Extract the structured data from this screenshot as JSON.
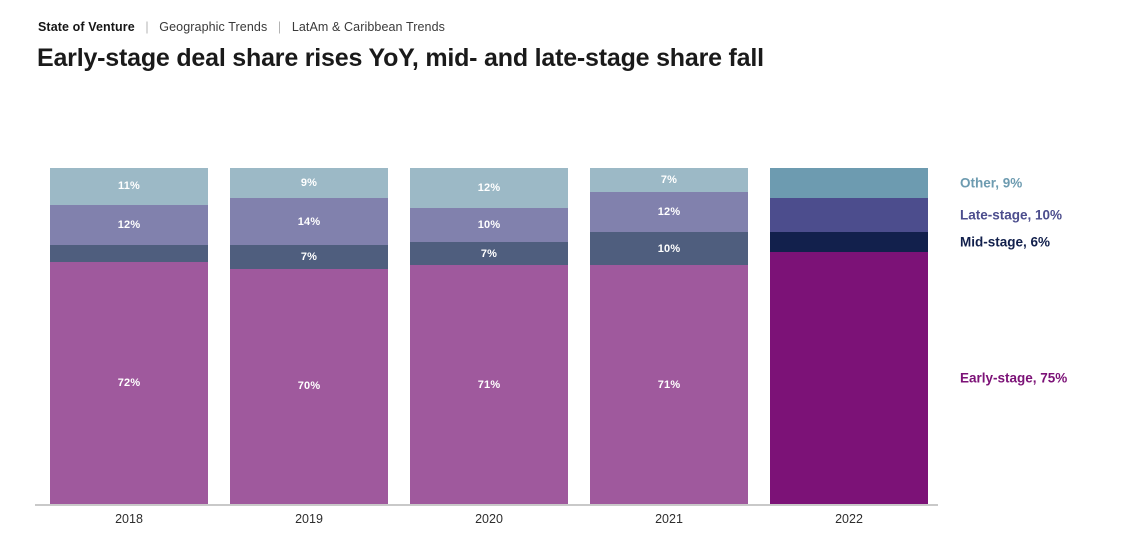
{
  "breadcrumb": {
    "separator": "|",
    "items": [
      "State of Venture",
      "Geographic Trends",
      "LatAm & Caribbean Trends"
    ]
  },
  "title": "Early-stage deal share rises YoY, mid- and late-stage share fall",
  "chart_data": {
    "type": "bar",
    "subtype": "stacked-percentage-column",
    "title": "Early-stage deal share rises YoY, mid- and late-stage share fall",
    "categories": [
      "2018",
      "2019",
      "2020",
      "2021",
      "2022"
    ],
    "stack_order_top_to_bottom": [
      "Other",
      "Late-stage",
      "Mid-stage",
      "Early-stage"
    ],
    "series": [
      {
        "name": "Other",
        "values": [
          11,
          9,
          12,
          7,
          9
        ],
        "color": "#9cb9c6",
        "final_year_color": "#6d9bb0"
      },
      {
        "name": "Late-stage",
        "values": [
          12,
          14,
          10,
          12,
          10
        ],
        "color": "#8181ad",
        "final_year_color": "#4c4d8d"
      },
      {
        "name": "Mid-stage",
        "values": [
          5,
          7,
          7,
          10,
          6
        ],
        "color": "#4f5e7e",
        "final_year_color": "#12204c"
      },
      {
        "name": "Early-stage",
        "values": [
          72,
          70,
          71,
          71,
          75
        ],
        "color": "#9f599d",
        "final_year_color": "#7c1277"
      }
    ],
    "segment_labels": [
      [
        "11%",
        "12%",
        "",
        "72%"
      ],
      [
        "9%",
        "14%",
        "7%",
        "70%"
      ],
      [
        "12%",
        "10%",
        "7%",
        "71%"
      ],
      [
        "7%",
        "12%",
        "10%",
        "71%"
      ],
      [
        "",
        "",
        "",
        ""
      ]
    ],
    "value_label_color": "#ffffff",
    "ylim": [
      0,
      100
    ],
    "grid": false,
    "legend_position": "right"
  },
  "legend": {
    "items": [
      {
        "label": "Other, 9%",
        "color": "#6d9bb0"
      },
      {
        "label": "Late-stage, 10%",
        "color": "#4c4d8d"
      },
      {
        "label": "Mid-stage, 6%",
        "color": "#12204c"
      },
      {
        "label": "Early-stage, 75%",
        "color": "#7c1277"
      }
    ]
  }
}
